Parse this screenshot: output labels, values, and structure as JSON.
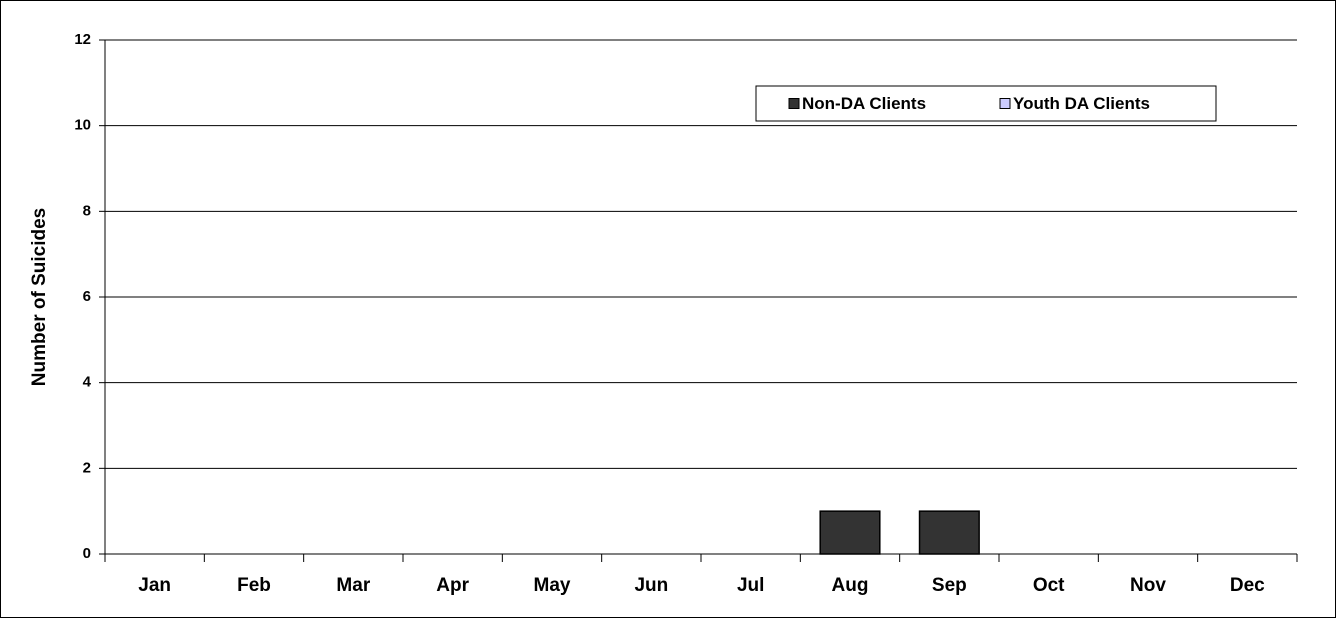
{
  "chart_data": {
    "type": "bar",
    "stacked": true,
    "y_label": "Number of Suicides",
    "categories": [
      "Jan",
      "Feb",
      "Mar",
      "Apr",
      "May",
      "Jun",
      "Jul",
      "Aug",
      "Sep",
      "Oct",
      "Nov",
      "Dec"
    ],
    "series": [
      {
        "name": "Non-DA Clients",
        "color": "#333333",
        "values": [
          0,
          0,
          0,
          0,
          0,
          0,
          0,
          1,
          1,
          0,
          0,
          0
        ]
      },
      {
        "name": "Youth DA Clients",
        "color": "#ccccff",
        "values": [
          0,
          0,
          0,
          0,
          0,
          0,
          0,
          0,
          0,
          0,
          0,
          0
        ]
      }
    ],
    "ylim": [
      0,
      12
    ],
    "yticks": [
      0,
      2,
      4,
      6,
      8,
      10,
      12
    ],
    "grid": true,
    "legend": "top-right"
  }
}
